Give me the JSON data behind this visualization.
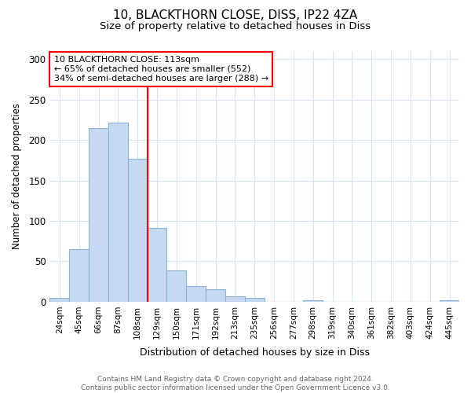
{
  "title1": "10, BLACKTHORN CLOSE, DISS, IP22 4ZA",
  "title2": "Size of property relative to detached houses in Diss",
  "xlabel": "Distribution of detached houses by size in Diss",
  "ylabel": "Number of detached properties",
  "categories": [
    "24sqm",
    "45sqm",
    "66sqm",
    "87sqm",
    "108sqm",
    "129sqm",
    "150sqm",
    "171sqm",
    "192sqm",
    "213sqm",
    "235sqm",
    "256sqm",
    "277sqm",
    "298sqm",
    "319sqm",
    "340sqm",
    "361sqm",
    "382sqm",
    "403sqm",
    "424sqm",
    "445sqm"
  ],
  "values": [
    5,
    65,
    215,
    222,
    177,
    91,
    39,
    19,
    15,
    7,
    5,
    0,
    0,
    2,
    0,
    0,
    0,
    0,
    0,
    0,
    2
  ],
  "bar_color": "#c5d9f0",
  "bar_edge_color": "#8ab4d8",
  "vline_x": 4.5,
  "vline_color": "red",
  "annotation_text": "10 BLACKTHORN CLOSE: 113sqm\n← 65% of detached houses are smaller (552)\n34% of semi-detached houses are larger (288) →",
  "annotation_box_facecolor": "white",
  "annotation_box_edgecolor": "red",
  "ylim": [
    0,
    310
  ],
  "yticks": [
    0,
    50,
    100,
    150,
    200,
    250,
    300
  ],
  "footer": "Contains HM Land Registry data © Crown copyright and database right 2024.\nContains public sector information licensed under the Open Government Licence v3.0.",
  "bg_color": "#ffffff",
  "plot_bg_color": "#ffffff",
  "grid_color": "#d8e4f0"
}
